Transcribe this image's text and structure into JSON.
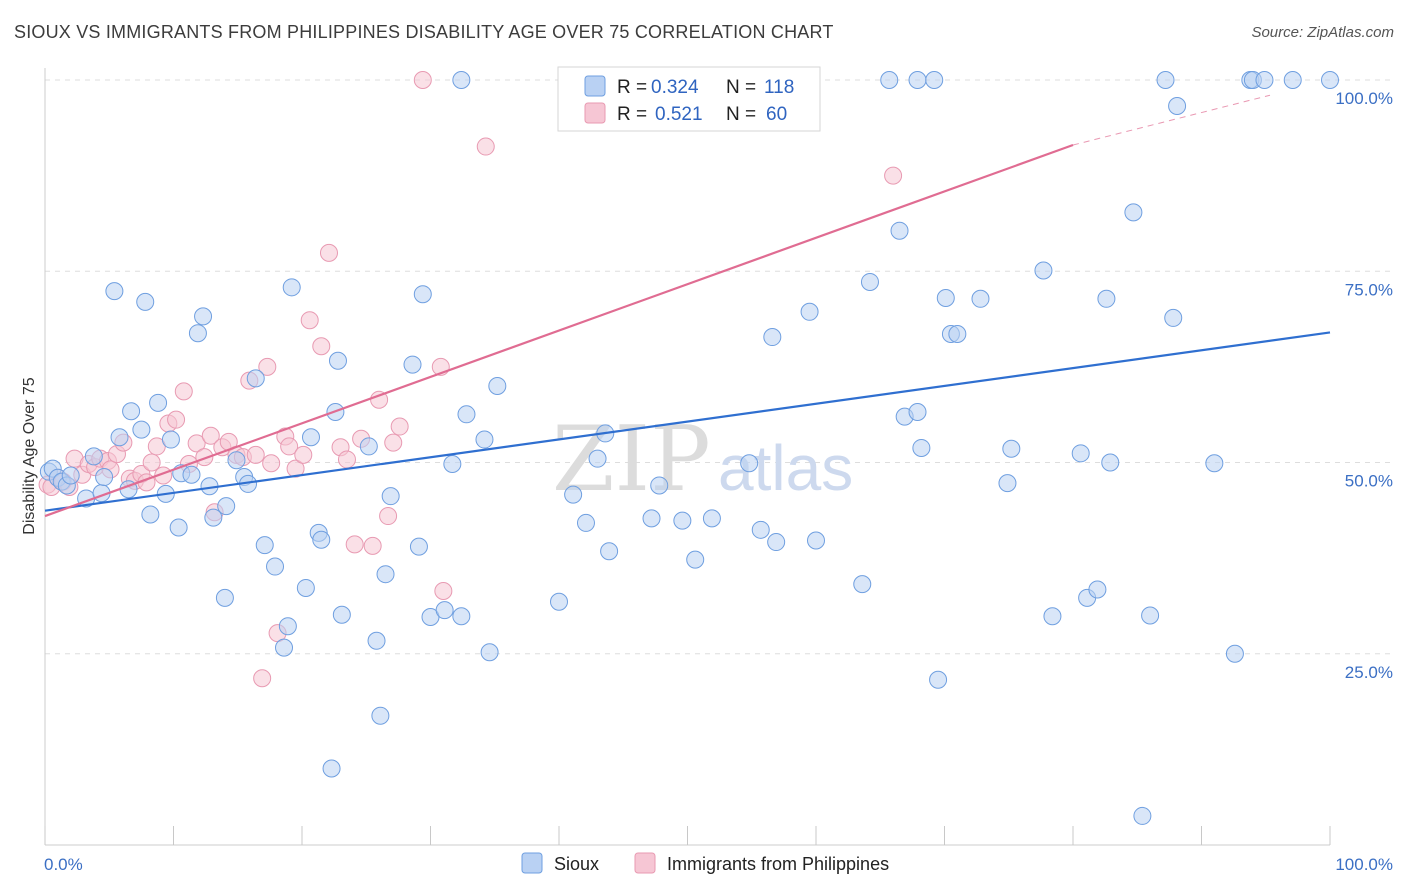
{
  "title": "SIOUX VS IMMIGRANTS FROM PHILIPPINES DISABILITY AGE OVER 75 CORRELATION CHART",
  "source": "Source: ZipAtlas.com",
  "watermark": {
    "part1": "ZIP",
    "part2": "atlas"
  },
  "colors": {
    "sioux": "#6f9fe0",
    "sioux_fill": "#b9d1f3",
    "sioux_line": "#2f6fd0",
    "phil": "#e89ab2",
    "phil_fill": "#f6c6d4",
    "phil_line": "#e06c92",
    "tick": "#3b6fc4",
    "grid": "#dddddd"
  },
  "legend": {
    "row1": {
      "r_label": "R =",
      "r_value": "0.324",
      "n_label": "N =",
      "n_value": "118"
    },
    "row2": {
      "r_label": "R =",
      "r_value": "0.521",
      "n_label": "N =",
      "n_value": "60"
    }
  },
  "chart_data": {
    "type": "scatter",
    "title": "SIOUX VS IMMIGRANTS FROM PHILIPPINES DISABILITY AGE OVER 75 CORRELATION CHART",
    "xlabel": "",
    "ylabel": "Disability Age Over 75",
    "xlim": [
      0,
      100
    ],
    "ylim": [
      0,
      100
    ],
    "x_tick_labels": [
      "0.0%",
      "100.0%"
    ],
    "y_tick_labels": [
      "25.0%",
      "50.0%",
      "75.0%",
      "100.0%"
    ],
    "y_ticks": [
      25,
      50,
      75,
      100
    ],
    "grid": true,
    "legend_position": "top-center",
    "series": [
      {
        "name": "Sioux",
        "r": 0.324,
        "n": 118,
        "trend": {
          "x": [
            0,
            100
          ],
          "y": [
            43.7,
            67.0
          ]
        },
        "points": [
          [
            0.3,
            48.8
          ],
          [
            0.6,
            49.2
          ],
          [
            1.0,
            48.0
          ],
          [
            1.3,
            47.5
          ],
          [
            1.7,
            47.0
          ],
          [
            2.0,
            48.3
          ],
          [
            3.2,
            45.3
          ],
          [
            3.8,
            50.8
          ],
          [
            4.4,
            46.0
          ],
          [
            4.6,
            48.1
          ],
          [
            5.4,
            72.4
          ],
          [
            5.8,
            53.3
          ],
          [
            6.5,
            46.5
          ],
          [
            6.7,
            56.7
          ],
          [
            7.5,
            54.3
          ],
          [
            7.8,
            71.0
          ],
          [
            8.2,
            43.2
          ],
          [
            8.8,
            57.8
          ],
          [
            9.4,
            45.9
          ],
          [
            9.8,
            53.0
          ],
          [
            10.4,
            41.5
          ],
          [
            10.6,
            48.6
          ],
          [
            11.4,
            48.4
          ],
          [
            11.9,
            66.9
          ],
          [
            12.3,
            69.1
          ],
          [
            12.8,
            46.9
          ],
          [
            13.1,
            42.8
          ],
          [
            14.1,
            44.3
          ],
          [
            14.0,
            32.3
          ],
          [
            14.9,
            50.3
          ],
          [
            15.5,
            48.1
          ],
          [
            15.8,
            47.2
          ],
          [
            16.4,
            61.0
          ],
          [
            17.1,
            39.2
          ],
          [
            17.9,
            36.4
          ],
          [
            18.6,
            25.8
          ],
          [
            18.9,
            28.6
          ],
          [
            19.2,
            72.9
          ],
          [
            20.3,
            33.6
          ],
          [
            20.7,
            53.3
          ],
          [
            21.3,
            40.8
          ],
          [
            21.5,
            39.9
          ],
          [
            22.6,
            56.6
          ],
          [
            22.8,
            63.3
          ],
          [
            23.1,
            30.1
          ],
          [
            22.3,
            10.0
          ],
          [
            25.2,
            52.1
          ],
          [
            25.8,
            26.7
          ],
          [
            26.1,
            16.9
          ],
          [
            26.5,
            35.4
          ],
          [
            26.9,
            45.6
          ],
          [
            28.6,
            62.8
          ],
          [
            29.1,
            39.0
          ],
          [
            29.4,
            72.0
          ],
          [
            30.0,
            29.8
          ],
          [
            31.1,
            30.7
          ],
          [
            31.7,
            49.8
          ],
          [
            32.4,
            29.9
          ],
          [
            32.8,
            56.3
          ],
          [
            34.2,
            53.0
          ],
          [
            34.6,
            25.2
          ],
          [
            35.2,
            60.0
          ],
          [
            40.0,
            31.8
          ],
          [
            41.1,
            45.8
          ],
          [
            42.1,
            42.1
          ],
          [
            43.0,
            50.5
          ],
          [
            43.6,
            53.8
          ],
          [
            43.9,
            38.4
          ],
          [
            47.2,
            42.7
          ],
          [
            47.8,
            47.0
          ],
          [
            49.6,
            42.4
          ],
          [
            50.6,
            37.3
          ],
          [
            51.9,
            42.7
          ],
          [
            54.8,
            49.9
          ],
          [
            55.7,
            41.2
          ],
          [
            56.6,
            66.4
          ],
          [
            56.9,
            39.6
          ],
          [
            59.5,
            69.7
          ],
          [
            60.0,
            39.8
          ],
          [
            63.6,
            34.1
          ],
          [
            64.2,
            73.6
          ],
          [
            66.5,
            80.3
          ],
          [
            66.9,
            56.0
          ],
          [
            67.9,
            56.6
          ],
          [
            68.2,
            51.9
          ],
          [
            69.5,
            21.6
          ],
          [
            70.1,
            71.5
          ],
          [
            70.5,
            66.8
          ],
          [
            71.0,
            66.8
          ],
          [
            72.8,
            71.4
          ],
          [
            74.9,
            47.3
          ],
          [
            75.2,
            51.8
          ],
          [
            77.7,
            75.1
          ],
          [
            78.4,
            29.9
          ],
          [
            80.6,
            51.2
          ],
          [
            81.1,
            32.3
          ],
          [
            81.9,
            33.4
          ],
          [
            82.6,
            71.4
          ],
          [
            82.9,
            50.0
          ],
          [
            84.7,
            82.7
          ],
          [
            86.0,
            30.0
          ],
          [
            87.8,
            68.9
          ],
          [
            88.1,
            96.6
          ],
          [
            91.0,
            49.9
          ],
          [
            92.6,
            25.0
          ],
          [
            85.4,
            3.8
          ],
          [
            32.4,
            100
          ],
          [
            65.7,
            100
          ],
          [
            67.9,
            100
          ],
          [
            69.2,
            100
          ],
          [
            87.2,
            100
          ],
          [
            93.8,
            100
          ],
          [
            94.0,
            100
          ],
          [
            94.9,
            100
          ],
          [
            97.1,
            100
          ],
          [
            100.0,
            100
          ]
        ]
      },
      {
        "name": "Immigrants from Philippines",
        "r": 0.521,
        "n": 60,
        "trend": {
          "x": [
            0,
            80
          ],
          "y": [
            43.0,
            91.5
          ],
          "dashed_to": {
            "x": 100,
            "y": 103.5
          }
        },
        "points": [
          [
            0.2,
            47.1
          ],
          [
            0.5,
            46.8
          ],
          [
            1.0,
            48.0
          ],
          [
            1.4,
            47.5
          ],
          [
            1.9,
            46.8
          ],
          [
            2.3,
            50.5
          ],
          [
            2.9,
            48.4
          ],
          [
            3.4,
            49.8
          ],
          [
            3.9,
            49.4
          ],
          [
            4.3,
            50.5
          ],
          [
            4.9,
            50.2
          ],
          [
            5.1,
            49.1
          ],
          [
            5.6,
            51.1
          ],
          [
            6.1,
            52.6
          ],
          [
            6.6,
            47.9
          ],
          [
            7.0,
            47.6
          ],
          [
            7.5,
            48.5
          ],
          [
            7.9,
            47.4
          ],
          [
            8.3,
            50.0
          ],
          [
            8.7,
            52.1
          ],
          [
            9.2,
            48.3
          ],
          [
            9.6,
            55.1
          ],
          [
            10.2,
            55.6
          ],
          [
            10.8,
            59.3
          ],
          [
            11.2,
            49.8
          ],
          [
            11.8,
            52.5
          ],
          [
            12.4,
            50.7
          ],
          [
            12.9,
            53.5
          ],
          [
            13.2,
            43.5
          ],
          [
            13.8,
            52.0
          ],
          [
            14.3,
            52.7
          ],
          [
            14.9,
            51.0
          ],
          [
            15.4,
            50.7
          ],
          [
            15.9,
            60.7
          ],
          [
            16.4,
            51.0
          ],
          [
            16.9,
            21.8
          ],
          [
            17.3,
            62.5
          ],
          [
            17.6,
            49.9
          ],
          [
            18.1,
            27.7
          ],
          [
            18.7,
            53.4
          ],
          [
            19.0,
            52.1
          ],
          [
            19.5,
            49.2
          ],
          [
            20.1,
            51.0
          ],
          [
            20.6,
            68.6
          ],
          [
            21.5,
            65.2
          ],
          [
            22.1,
            77.4
          ],
          [
            23.0,
            52.0
          ],
          [
            23.5,
            50.4
          ],
          [
            24.1,
            39.3
          ],
          [
            24.6,
            53.1
          ],
          [
            25.5,
            39.1
          ],
          [
            26.0,
            58.2
          ],
          [
            26.7,
            43.0
          ],
          [
            27.1,
            52.6
          ],
          [
            27.6,
            54.7
          ],
          [
            29.4,
            100
          ],
          [
            30.8,
            62.5
          ],
          [
            31.0,
            33.2
          ],
          [
            34.3,
            91.3
          ],
          [
            66.0,
            87.5
          ]
        ]
      }
    ]
  },
  "bottom_legend": {
    "sioux": "Sioux",
    "phil": "Immigrants from Philippines"
  }
}
